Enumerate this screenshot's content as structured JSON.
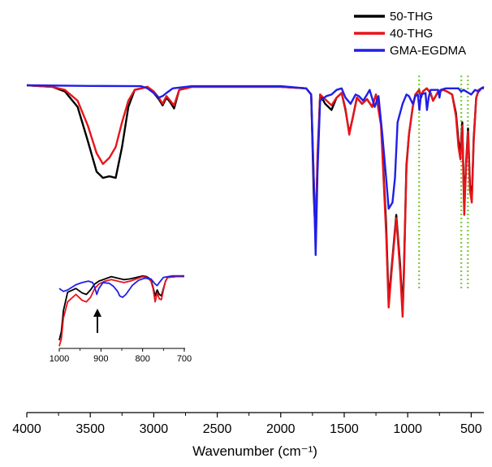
{
  "chart_data": {
    "type": "line",
    "title": "",
    "xlabel": "Wavenumber (cm⁻¹)",
    "ylabel": "",
    "xlim": [
      4000,
      400
    ],
    "x_ticks": [
      4000,
      3500,
      3000,
      2500,
      2000,
      1500,
      1000,
      500
    ],
    "legend_position": "top-right",
    "grid": false,
    "series": [
      {
        "name": "50-THG",
        "color": "#000000",
        "points": [
          [
            4000,
            1.0
          ],
          [
            3800,
            0.995
          ],
          [
            3700,
            0.98
          ],
          [
            3600,
            0.93
          ],
          [
            3520,
            0.82
          ],
          [
            3450,
            0.72
          ],
          [
            3400,
            0.7
          ],
          [
            3350,
            0.705
          ],
          [
            3300,
            0.7
          ],
          [
            3250,
            0.8
          ],
          [
            3200,
            0.93
          ],
          [
            3150,
            0.985
          ],
          [
            3050,
            0.995
          ],
          [
            3000,
            0.975
          ],
          [
            2960,
            0.955
          ],
          [
            2930,
            0.935
          ],
          [
            2900,
            0.96
          ],
          [
            2870,
            0.945
          ],
          [
            2840,
            0.925
          ],
          [
            2800,
            0.985
          ],
          [
            2700,
            0.995
          ],
          [
            2000,
            0.995
          ],
          [
            1800,
            0.99
          ],
          [
            1760,
            0.97
          ],
          [
            1740,
            0.65
          ],
          [
            1725,
            0.5
          ],
          [
            1710,
            0.75
          ],
          [
            1690,
            0.97
          ],
          [
            1650,
            0.94
          ],
          [
            1600,
            0.92
          ],
          [
            1560,
            0.96
          ],
          [
            1520,
            0.975
          ],
          [
            1490,
            0.92
          ],
          [
            1460,
            0.845
          ],
          [
            1430,
            0.9
          ],
          [
            1400,
            0.96
          ],
          [
            1360,
            0.94
          ],
          [
            1320,
            0.955
          ],
          [
            1280,
            0.93
          ],
          [
            1250,
            0.97
          ],
          [
            1210,
            0.88
          ],
          [
            1170,
            0.55
          ],
          [
            1150,
            0.3
          ],
          [
            1120,
            0.44
          ],
          [
            1090,
            0.58
          ],
          [
            1060,
            0.42
          ],
          [
            1040,
            0.27
          ],
          [
            1030,
            0.4
          ],
          [
            1010,
            0.74
          ],
          [
            990,
            0.84
          ],
          [
            960,
            0.93
          ],
          [
            940,
            0.97
          ],
          [
            910,
            0.985
          ],
          [
            895,
            0.96
          ],
          [
            880,
            0.98
          ],
          [
            850,
            0.99
          ],
          [
            820,
            0.975
          ],
          [
            800,
            0.95
          ],
          [
            780,
            0.965
          ],
          [
            760,
            0.98
          ],
          [
            720,
            0.985
          ],
          [
            690,
            0.98
          ],
          [
            650,
            0.97
          ],
          [
            620,
            0.91
          ],
          [
            600,
            0.82
          ],
          [
            585,
            0.78
          ],
          [
            570,
            0.88
          ],
          [
            555,
            0.6
          ],
          [
            540,
            0.75
          ],
          [
            525,
            0.86
          ],
          [
            510,
            0.68
          ],
          [
            495,
            0.63
          ],
          [
            480,
            0.83
          ],
          [
            460,
            0.96
          ],
          [
            440,
            0.985
          ],
          [
            420,
            0.99
          ],
          [
            400,
            0.99
          ]
        ]
      },
      {
        "name": "40-THG",
        "color": "#e8141a",
        "points": [
          [
            4000,
            1.0
          ],
          [
            3800,
            0.995
          ],
          [
            3700,
            0.985
          ],
          [
            3600,
            0.95
          ],
          [
            3520,
            0.87
          ],
          [
            3450,
            0.78
          ],
          [
            3400,
            0.745
          ],
          [
            3350,
            0.765
          ],
          [
            3300,
            0.8
          ],
          [
            3250,
            0.88
          ],
          [
            3200,
            0.95
          ],
          [
            3150,
            0.985
          ],
          [
            3050,
            0.995
          ],
          [
            3000,
            0.98
          ],
          [
            2960,
            0.96
          ],
          [
            2930,
            0.94
          ],
          [
            2900,
            0.965
          ],
          [
            2870,
            0.95
          ],
          [
            2840,
            0.935
          ],
          [
            2800,
            0.985
          ],
          [
            2700,
            0.995
          ],
          [
            2000,
            0.995
          ],
          [
            1800,
            0.99
          ],
          [
            1760,
            0.97
          ],
          [
            1740,
            0.7
          ],
          [
            1725,
            0.52
          ],
          [
            1710,
            0.78
          ],
          [
            1690,
            0.97
          ],
          [
            1650,
            0.955
          ],
          [
            1600,
            0.935
          ],
          [
            1560,
            0.96
          ],
          [
            1520,
            0.975
          ],
          [
            1490,
            0.925
          ],
          [
            1460,
            0.84
          ],
          [
            1430,
            0.9
          ],
          [
            1400,
            0.96
          ],
          [
            1360,
            0.94
          ],
          [
            1320,
            0.955
          ],
          [
            1280,
            0.93
          ],
          [
            1250,
            0.97
          ],
          [
            1210,
            0.87
          ],
          [
            1170,
            0.52
          ],
          [
            1150,
            0.28
          ],
          [
            1120,
            0.43
          ],
          [
            1090,
            0.57
          ],
          [
            1060,
            0.4
          ],
          [
            1040,
            0.25
          ],
          [
            1030,
            0.38
          ],
          [
            1010,
            0.73
          ],
          [
            990,
            0.84
          ],
          [
            960,
            0.93
          ],
          [
            940,
            0.97
          ],
          [
            910,
            0.985
          ],
          [
            895,
            0.965
          ],
          [
            880,
            0.98
          ],
          [
            850,
            0.99
          ],
          [
            820,
            0.975
          ],
          [
            800,
            0.95
          ],
          [
            780,
            0.965
          ],
          [
            760,
            0.98
          ],
          [
            720,
            0.985
          ],
          [
            690,
            0.98
          ],
          [
            650,
            0.97
          ],
          [
            620,
            0.9
          ],
          [
            600,
            0.8
          ],
          [
            585,
            0.76
          ],
          [
            570,
            0.87
          ],
          [
            555,
            0.58
          ],
          [
            540,
            0.74
          ],
          [
            525,
            0.85
          ],
          [
            510,
            0.66
          ],
          [
            495,
            0.62
          ],
          [
            480,
            0.82
          ],
          [
            460,
            0.96
          ],
          [
            440,
            0.985
          ],
          [
            420,
            0.99
          ],
          [
            400,
            0.99
          ]
        ]
      },
      {
        "name": "GMA-EGDMA",
        "color": "#1f1fe8",
        "points": [
          [
            4000,
            1.0
          ],
          [
            3500,
            0.998
          ],
          [
            3100,
            0.997
          ],
          [
            3050,
            0.99
          ],
          [
            3000,
            0.975
          ],
          [
            2960,
            0.96
          ],
          [
            2930,
            0.965
          ],
          [
            2900,
            0.975
          ],
          [
            2850,
            0.99
          ],
          [
            2700,
            0.997
          ],
          [
            2000,
            0.997
          ],
          [
            1800,
            0.99
          ],
          [
            1760,
            0.97
          ],
          [
            1740,
            0.7
          ],
          [
            1725,
            0.45
          ],
          [
            1710,
            0.72
          ],
          [
            1690,
            0.95
          ],
          [
            1640,
            0.965
          ],
          [
            1600,
            0.97
          ],
          [
            1560,
            0.985
          ],
          [
            1520,
            0.99
          ],
          [
            1490,
            0.96
          ],
          [
            1450,
            0.94
          ],
          [
            1410,
            0.97
          ],
          [
            1385,
            0.965
          ],
          [
            1350,
            0.95
          ],
          [
            1320,
            0.97
          ],
          [
            1300,
            0.985
          ],
          [
            1260,
            0.93
          ],
          [
            1230,
            0.965
          ],
          [
            1200,
            0.84
          ],
          [
            1170,
            0.7
          ],
          [
            1150,
            0.6
          ],
          [
            1120,
            0.62
          ],
          [
            1100,
            0.7
          ],
          [
            1080,
            0.88
          ],
          [
            1040,
            0.94
          ],
          [
            1010,
            0.97
          ],
          [
            990,
            0.965
          ],
          [
            960,
            0.94
          ],
          [
            940,
            0.965
          ],
          [
            920,
            0.97
          ],
          [
            908,
            0.92
          ],
          [
            895,
            0.97
          ],
          [
            860,
            0.975
          ],
          [
            848,
            0.92
          ],
          [
            835,
            0.96
          ],
          [
            820,
            0.985
          ],
          [
            760,
            0.985
          ],
          [
            750,
            0.96
          ],
          [
            740,
            0.985
          ],
          [
            700,
            0.99
          ],
          [
            600,
            0.99
          ],
          [
            580,
            0.98
          ],
          [
            560,
            0.985
          ],
          [
            500,
            0.97
          ],
          [
            470,
            0.985
          ],
          [
            440,
            0.98
          ],
          [
            420,
            0.99
          ],
          [
            400,
            0.995
          ]
        ]
      }
    ],
    "reference_lines_x": [
      910,
      578,
      526
    ],
    "inset": {
      "xlim": [
        1000,
        700
      ],
      "x_ticks": [
        1000,
        900,
        800,
        700
      ],
      "annotation": "arrow at 910",
      "series": [
        {
          "name": "50-THG",
          "color": "#000000",
          "points": [
            [
              1000,
              0.1
            ],
            [
              995,
              0.22
            ],
            [
              990,
              0.5
            ],
            [
              980,
              0.75
            ],
            [
              960,
              0.8
            ],
            [
              945,
              0.74
            ],
            [
              935,
              0.72
            ],
            [
              925,
              0.78
            ],
            [
              915,
              0.86
            ],
            [
              905,
              0.9
            ],
            [
              890,
              0.93
            ],
            [
              875,
              0.96
            ],
            [
              860,
              0.94
            ],
            [
              845,
              0.92
            ],
            [
              830,
              0.93
            ],
            [
              815,
              0.95
            ],
            [
              800,
              0.97
            ],
            [
              790,
              0.96
            ],
            [
              780,
              0.92
            ],
            [
              775,
              0.82
            ],
            [
              770,
              0.7
            ],
            [
              765,
              0.78
            ],
            [
              760,
              0.72
            ],
            [
              755,
              0.7
            ],
            [
              750,
              0.8
            ],
            [
              745,
              0.9
            ],
            [
              740,
              0.95
            ],
            [
              720,
              0.96
            ],
            [
              700,
              0.96
            ]
          ]
        },
        {
          "name": "40-THG",
          "color": "#e8141a",
          "points": [
            [
              1000,
              0.02
            ],
            [
              995,
              0.12
            ],
            [
              990,
              0.4
            ],
            [
              980,
              0.62
            ],
            [
              960,
              0.72
            ],
            [
              945,
              0.64
            ],
            [
              935,
              0.62
            ],
            [
              925,
              0.68
            ],
            [
              915,
              0.8
            ],
            [
              905,
              0.86
            ],
            [
              890,
              0.9
            ],
            [
              875,
              0.92
            ],
            [
              860,
              0.9
            ],
            [
              845,
              0.88
            ],
            [
              830,
              0.9
            ],
            [
              815,
              0.93
            ],
            [
              800,
              0.96
            ],
            [
              790,
              0.95
            ],
            [
              780,
              0.9
            ],
            [
              775,
              0.8
            ],
            [
              770,
              0.62
            ],
            [
              765,
              0.74
            ],
            [
              760,
              0.66
            ],
            [
              755,
              0.65
            ],
            [
              750,
              0.78
            ],
            [
              745,
              0.9
            ],
            [
              740,
              0.95
            ],
            [
              720,
              0.96
            ],
            [
              700,
              0.96
            ]
          ]
        },
        {
          "name": "GMA-EGDMA",
          "color": "#1f1fe8",
          "points": [
            [
              1000,
              0.8
            ],
            [
              990,
              0.76
            ],
            [
              980,
              0.78
            ],
            [
              960,
              0.85
            ],
            [
              945,
              0.88
            ],
            [
              930,
              0.9
            ],
            [
              920,
              0.88
            ],
            [
              915,
              0.82
            ],
            [
              910,
              0.72
            ],
            [
              905,
              0.8
            ],
            [
              895,
              0.88
            ],
            [
              880,
              0.87
            ],
            [
              870,
              0.83
            ],
            [
              860,
              0.76
            ],
            [
              855,
              0.7
            ],
            [
              848,
              0.68
            ],
            [
              840,
              0.72
            ],
            [
              825,
              0.84
            ],
            [
              810,
              0.91
            ],
            [
              795,
              0.94
            ],
            [
              780,
              0.93
            ],
            [
              770,
              0.86
            ],
            [
              765,
              0.84
            ],
            [
              760,
              0.88
            ],
            [
              750,
              0.95
            ],
            [
              730,
              0.97
            ],
            [
              700,
              0.97
            ]
          ]
        }
      ]
    }
  }
}
